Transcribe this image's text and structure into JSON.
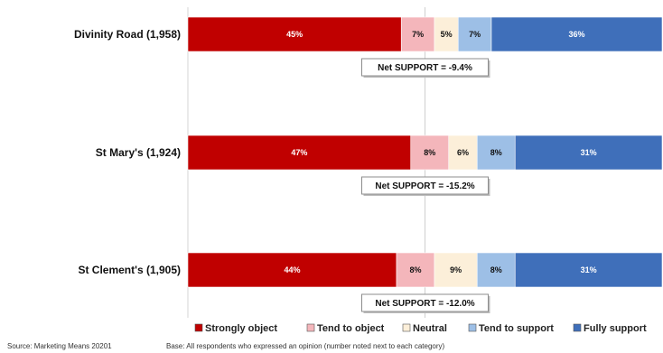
{
  "chart_data": {
    "type": "bar",
    "orientation": "horizontal",
    "stacked": true,
    "percent": true,
    "categories": [
      "Divinity Road (1,958)",
      "St Mary's (1,924)",
      "St Clement's (1,905)"
    ],
    "series": [
      {
        "name": "Strongly object",
        "color": "#c00000",
        "label_color": "#ffffff",
        "values": [
          45,
          47,
          44
        ],
        "labels": [
          "45%",
          "47%",
          "44%"
        ]
      },
      {
        "name": "Tend to object",
        "color": "#f4b6bb",
        "label_color": "#111111",
        "values": [
          7,
          8,
          8
        ],
        "labels": [
          "7%",
          "8%",
          "8%"
        ]
      },
      {
        "name": "Neutral",
        "color": "#fcefd9",
        "label_color": "#111111",
        "values": [
          5,
          6,
          9
        ],
        "labels": [
          "5%",
          "6%",
          "9%"
        ]
      },
      {
        "name": "Tend to support",
        "color": "#9dbfe6",
        "label_color": "#111111",
        "values": [
          7,
          8,
          8
        ],
        "labels": [
          "7%",
          "8%",
          "8%"
        ]
      },
      {
        "name": "Fully support",
        "color": "#3f6fba",
        "label_color": "#ffffff",
        "values": [
          36,
          31,
          31
        ],
        "labels": [
          "36%",
          "31%",
          "31%"
        ]
      }
    ],
    "net_support": [
      "Net  SUPPORT = -9.4%",
      "Net  SUPPORT = -15.2%",
      "Net  SUPPORT = -12.0%"
    ],
    "xlim": [
      0,
      100
    ],
    "midline": 50,
    "legend_position": "bottom"
  },
  "footer": {
    "source": "Source: Marketing Means 20201",
    "base": "Base: All respondents who expressed an opinion (number noted next to each category)"
  }
}
